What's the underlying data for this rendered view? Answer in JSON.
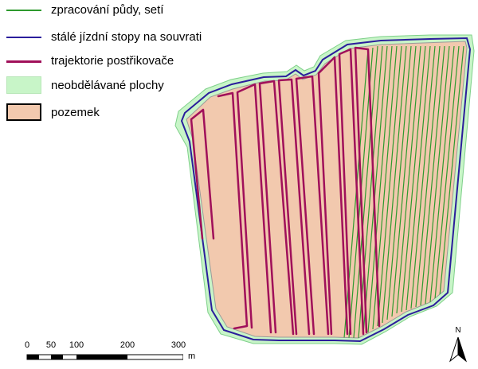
{
  "legend": {
    "items": [
      {
        "label": "zpracování půdy, setí",
        "color": "#2e9a2e"
      },
      {
        "label": "stálé jízdní stopy na souvrati",
        "color": "#2b1e9c"
      },
      {
        "label": "trajektorie postřikovače",
        "color": "#a0105a"
      },
      {
        "label": "neobdělávané plochy",
        "color": "#c8f5c8"
      },
      {
        "label": "pozemek",
        "color": "#f2c9ae"
      }
    ]
  },
  "scalebar": {
    "ticks": [
      "0",
      "50",
      "100",
      "200",
      "300"
    ],
    "unit": "m"
  },
  "north_arrow": {
    "label": "N",
    "icon": "north-arrow-icon"
  }
}
